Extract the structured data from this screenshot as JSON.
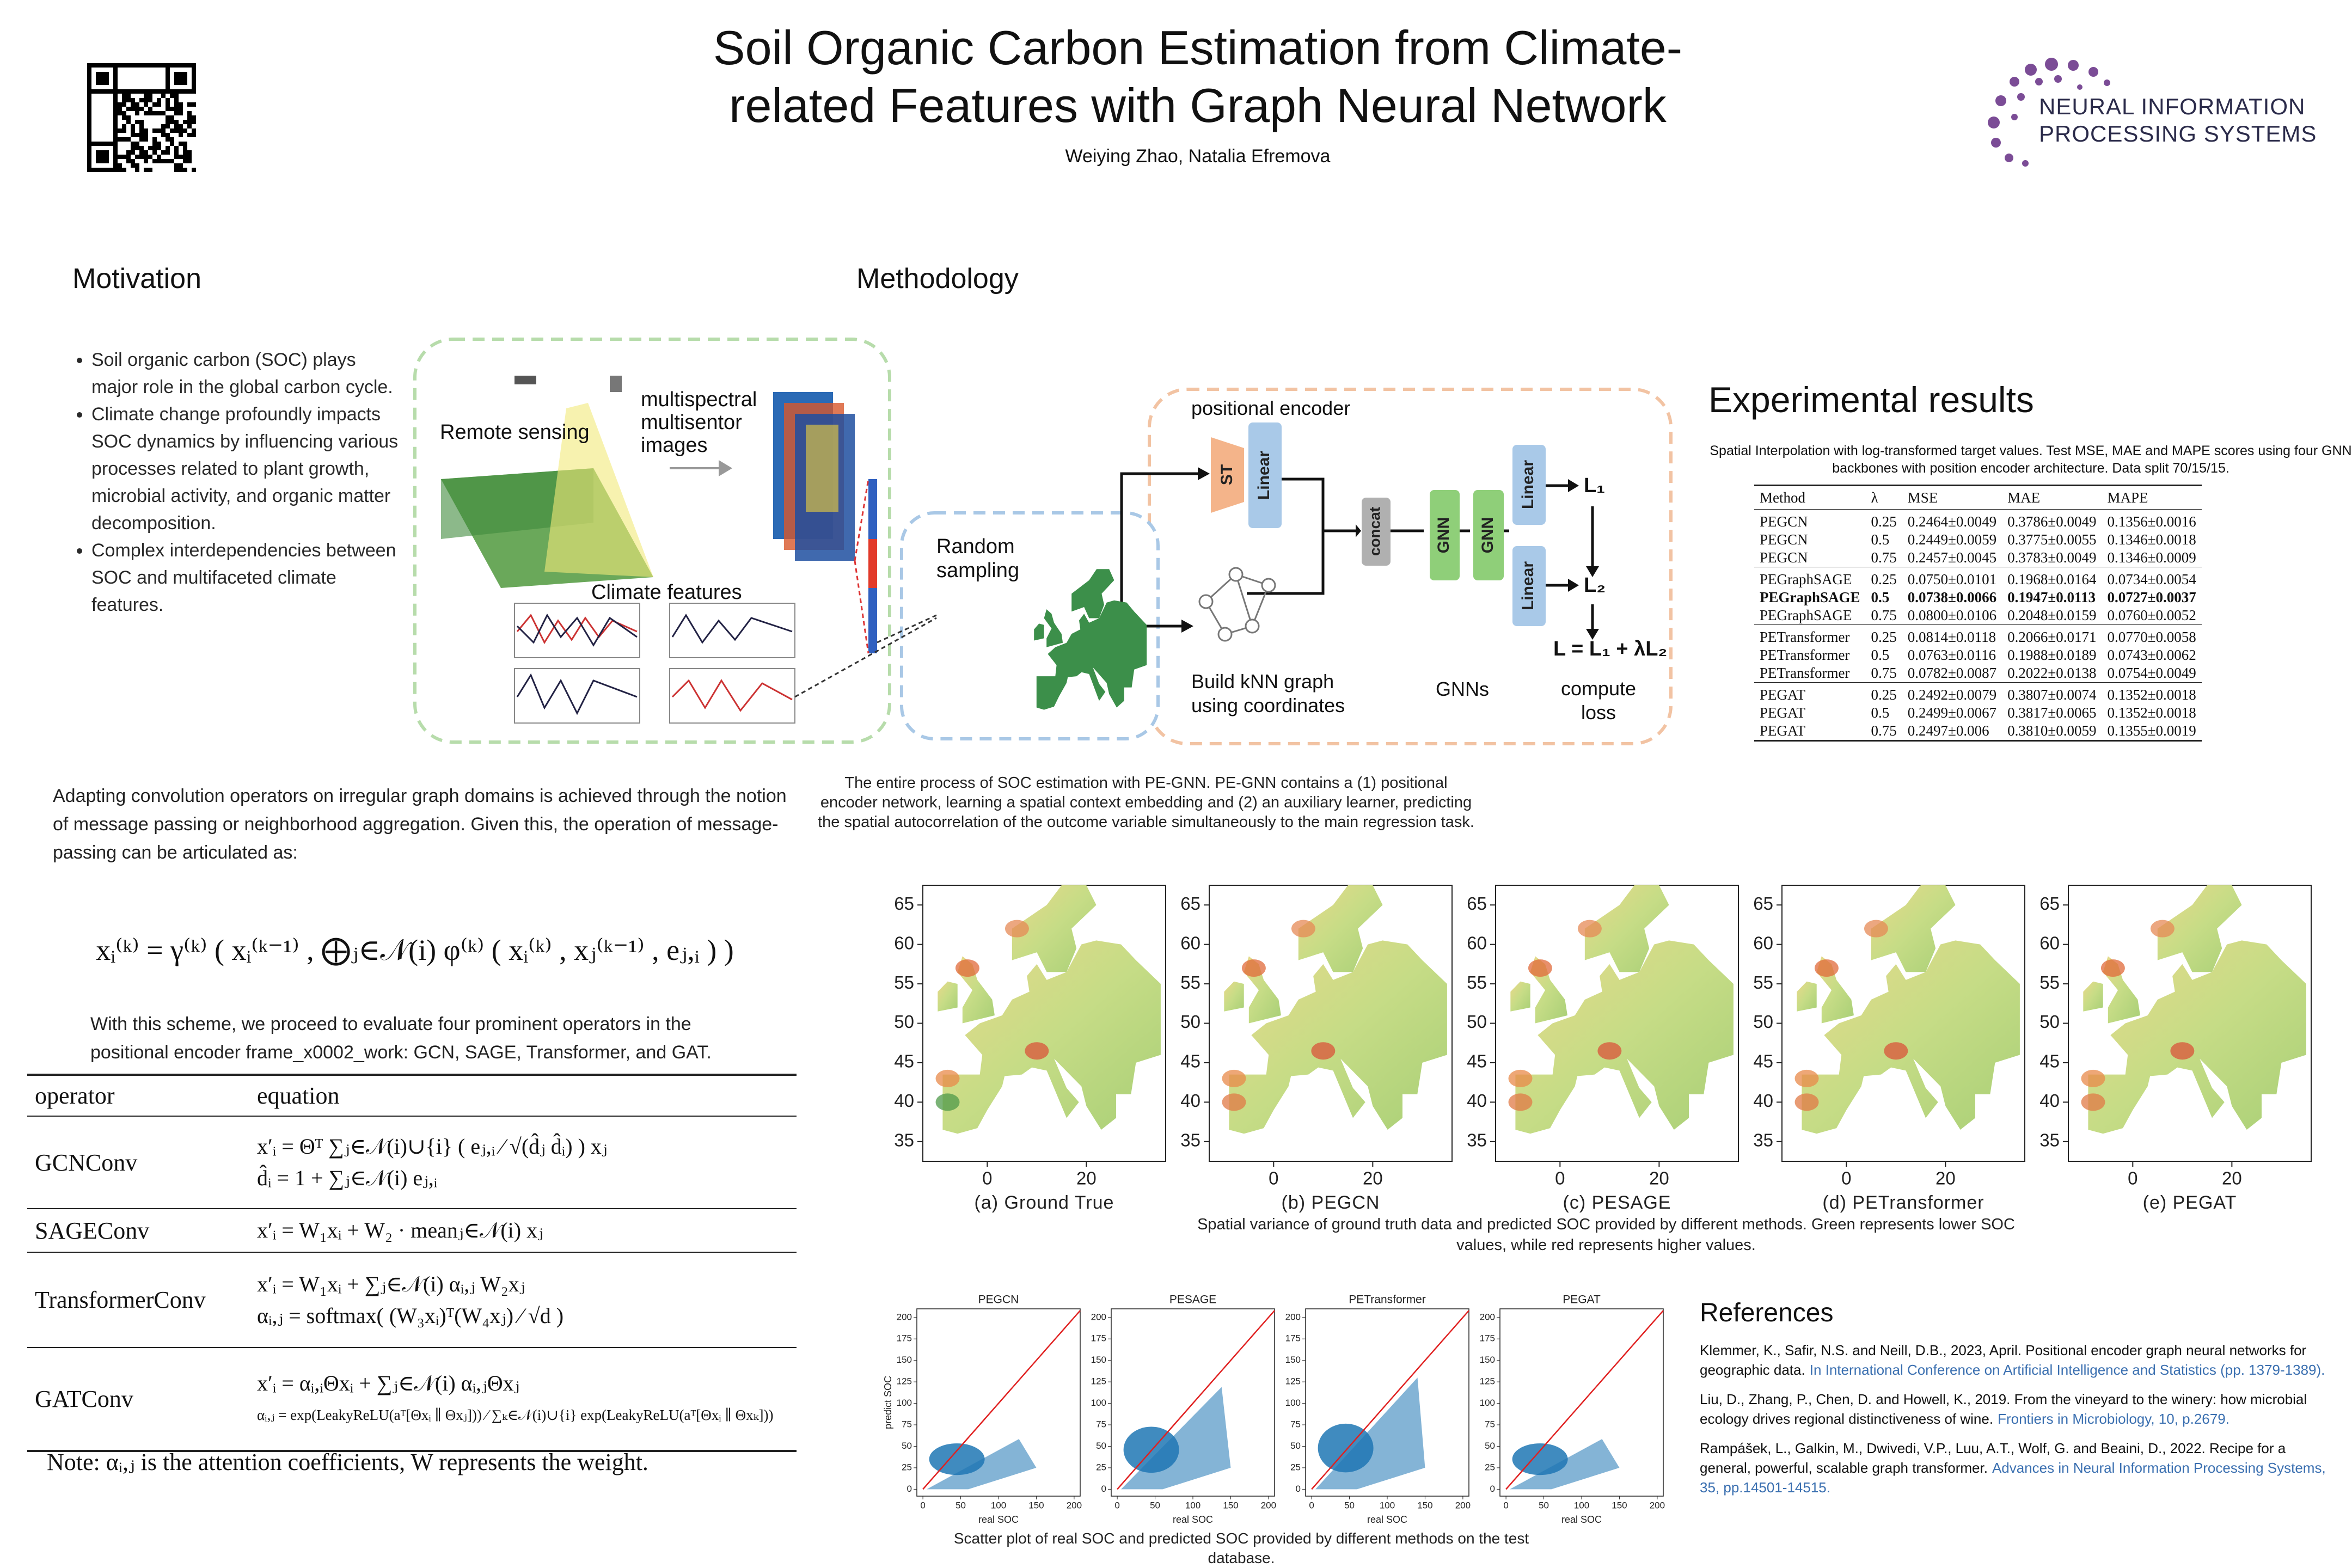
{
  "header": {
    "title_lines": [
      "Soil Organic Carbon Estimation from Climate-",
      "related Features with Graph Neural Network"
    ],
    "authors": "Weiying Zhao, Natalia Efremova",
    "logo_text": [
      "NEURAL INFORMATION",
      "PROCESSING SYSTEMS"
    ]
  },
  "motivation": {
    "heading": "Motivation",
    "bullets": [
      "Soil organic carbon (SOC) plays major role in the global carbon cycle.",
      "Climate change profoundly impacts SOC dynamics by influencing various processes related to plant growth, microbial activity, and organic matter decomposition.",
      "Complex interdependencies between SOC and multifaceted climate features."
    ]
  },
  "methodology": {
    "heading": "Methodology",
    "diagram": {
      "remote_sensing": "Remote sensing",
      "image_label": [
        "multispectral",
        "multisentor",
        "images"
      ],
      "climate_features": "Climate features",
      "random_sampling": [
        "Random",
        "sampling"
      ],
      "positional_encoder": "positional encoder",
      "st": "ST",
      "linear": "Linear",
      "concat": "concat",
      "gnn": "GNN",
      "loss1": "L₁",
      "loss2": "L₂",
      "loss_total": "L = L₁ + λL₂",
      "knn": [
        "Build kNN graph",
        "using coordinates"
      ],
      "gnns": "GNNs",
      "compute_loss": [
        "compute",
        "loss"
      ]
    },
    "caption": "The entire process of SOC estimation with PE-GNN. PE-GNN contains a (1) positional encoder network, learning a spatial context embedding and (2) an auxiliary learner, predicting the spatial autocorrelation of the outcome variable simultaneously to the main regression task.",
    "intro": "Adapting convolution operators on irregular graph domains is achieved through the notion of message passing or neighborhood aggregation. Given this, the operation of message-passing can be articulated as:",
    "equation": "xᵢ⁽ᵏ⁾ = γ⁽ᵏ⁾ ( xᵢ⁽ᵏ⁻¹⁾ , ⨁ⱼ∈𝒩(i) φ⁽ᵏ⁾ ( xᵢ⁽ᵏ⁾ , xⱼ⁽ᵏ⁻¹⁾ , eⱼ,ᵢ ) )",
    "followup": "With this scheme, we proceed to evaluate four prominent operators in the positional encoder frame_x0002_work: GCN, SAGE, Transformer, and GAT.",
    "operator_table": {
      "columns": [
        "operator",
        "equation"
      ],
      "rows": [
        {
          "operator": "GCNConv",
          "equations": [
            "x′ᵢ = Θᵀ ∑ⱼ∈𝒩(i)∪{i} ( eⱼ,ᵢ ⁄ √(d̂ⱼ d̂ᵢ) ) xⱼ",
            "d̂ᵢ = 1 + ∑ⱼ∈𝒩(i) eⱼ,ᵢ"
          ]
        },
        {
          "operator": "SAGEConv",
          "equations": [
            "x′ᵢ = W₁xᵢ + W₂ · meanⱼ∈𝒩(i) xⱼ"
          ]
        },
        {
          "operator": "TransformerConv",
          "equations": [
            "x′ᵢ = W₁xᵢ + ∑ⱼ∈𝒩(i) αᵢ,ⱼ W₂xⱼ",
            "αᵢ,ⱼ = softmax( (W₃xᵢ)ᵀ(W₄xⱼ) ⁄ √d )"
          ]
        },
        {
          "operator": "GATConv",
          "equations": [
            "x′ᵢ = αᵢ,ᵢΘxᵢ + ∑ⱼ∈𝒩(i) αᵢ,ⱼΘxⱼ",
            "αᵢ,ⱼ = exp(LeakyReLU(aᵀ[Θxᵢ ∥ Θxⱼ])) ⁄ ∑ₖ∈𝒩(i)∪{i} exp(LeakyReLU(aᵀ[Θxᵢ ∥ Θxₖ]))"
          ]
        }
      ],
      "note": "Note: αᵢ,ⱼ is the attention coefficients, W represents the weight."
    }
  },
  "results": {
    "heading": "Experimental results",
    "table_caption": "Spatial Interpolation with log-transformed target values. Test MSE, MAE and MAPE scores using four GNN backbones with position encoder architecture. Data split 70/15/15.",
    "table": {
      "columns": [
        "Method",
        "λ",
        "MSE",
        "MAE",
        "MAPE"
      ],
      "groups": [
        [
          [
            "PEGCN",
            "0.25",
            "0.2464±0.0049",
            "0.3786±0.0049",
            "0.1356±0.0016"
          ],
          [
            "PEGCN",
            "0.5",
            "0.2449±0.0059",
            "0.3775±0.0055",
            "0.1346±0.0018"
          ],
          [
            "PEGCN",
            "0.75",
            "0.2457±0.0045",
            "0.3783±0.0049",
            "0.1346±0.0009"
          ]
        ],
        [
          [
            "PEGraphSAGE",
            "0.25",
            "0.0750±0.0101",
            "0.1968±0.0164",
            "0.0734±0.0054"
          ],
          [
            "PEGraphSAGE",
            "0.5",
            "0.0738±0.0066",
            "0.1947±0.0113",
            "0.0727±0.0037"
          ],
          [
            "PEGraphSAGE",
            "0.75",
            "0.0800±0.0106",
            "0.2048±0.0159",
            "0.0760±0.0052"
          ]
        ],
        [
          [
            "PETransformer",
            "0.25",
            "0.0814±0.0118",
            "0.2066±0.0171",
            "0.0770±0.0058"
          ],
          [
            "PETransformer",
            "0.5",
            "0.0763±0.0116",
            "0.1988±0.0189",
            "0.0743±0.0062"
          ],
          [
            "PETransformer",
            "0.75",
            "0.0782±0.0087",
            "0.2022±0.0138",
            "0.0754±0.0049"
          ]
        ],
        [
          [
            "PEGAT",
            "0.25",
            "0.2492±0.0079",
            "0.3807±0.0074",
            "0.1352±0.0018"
          ],
          [
            "PEGAT",
            "0.5",
            "0.2499±0.0067",
            "0.3817±0.0065",
            "0.1352±0.0018"
          ],
          [
            "PEGAT",
            "0.75",
            "0.2497±0.006",
            "0.3810±0.0059",
            "0.1355±0.0019"
          ]
        ]
      ]
    }
  },
  "map_figure": {
    "panels": [
      "(a) Ground True",
      "(b) PEGCN",
      "(c) PESAGE",
      "(d) PETransformer",
      "(e) PEGAT"
    ],
    "xlim": [
      -13,
      36
    ],
    "ylim": [
      32.5,
      67.5
    ],
    "xticks": [
      0,
      20
    ],
    "yticks": [
      65,
      60,
      55,
      50,
      45,
      40,
      35
    ],
    "caption": "Spatial variance of ground truth data and predicted SOC provided by different methods. Green represents lower SOC values, while red represents higher values."
  },
  "scatter_figure": {
    "titles": [
      "PEGCN",
      "PESAGE",
      "PETransformer",
      "PEGAT"
    ],
    "xlim": [
      -8,
      208
    ],
    "ylim": [
      -8,
      210
    ],
    "xticks": [
      0,
      50,
      100,
      150,
      200
    ],
    "yticks": [
      0,
      25,
      50,
      75,
      100,
      125,
      150,
      175,
      200
    ],
    "xlabel": "real SOC",
    "ylabel": "predict SOC",
    "caption": "Scatter plot of real SOC and predicted SOC provided by different methods on the test database."
  },
  "references": {
    "heading": "References",
    "items": [
      {
        "text": "Klemmer, K., Safir, N.S. and Neill, D.B., 2023, April. Positional encoder graph neural networks for geographic data.",
        "source": "In International Conference on Artificial Intelligence and Statistics (pp. 1379-1389)."
      },
      {
        "text": "Liu, D., Zhang, P., Chen, D. and Howell, K., 2019. From the vineyard to the winery: how microbial ecology drives regional distinctiveness of wine.",
        "source": "Frontiers in Microbiology, 10, p.2679."
      },
      {
        "text": "Rampášek, L., Galkin, M., Dwivedi, V.P., Luu, A.T., Wolf, G. and Beaini, D., 2022. Recipe for a general, powerful, scalable graph transformer.",
        "source": "Advances in Neural Information Processing Systems, 35, pp.14501-14515."
      }
    ]
  }
}
